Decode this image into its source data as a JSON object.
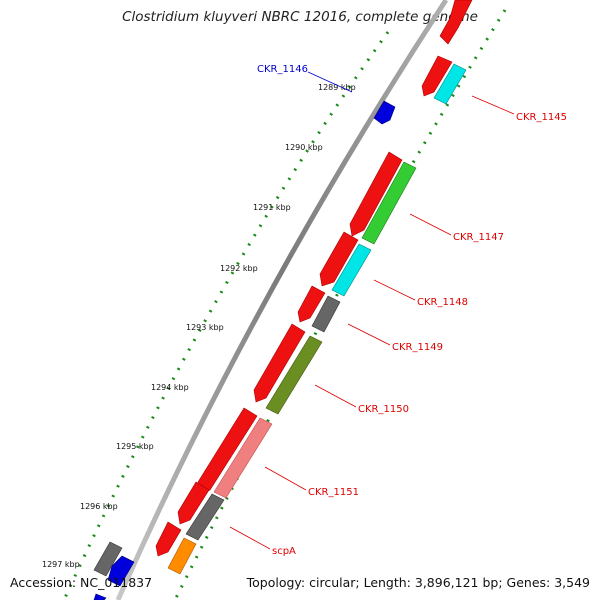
{
  "header": {
    "title": "Clostridium kluyveri NBRC 12016, complete genome"
  },
  "footer": {
    "accession": "Accession: NC_011837",
    "summary": "Topology: circular; Length: 3,896,121 bp; Genes: 3,549"
  },
  "scale_ticks": [
    {
      "label": "1289 kbp",
      "kbp": 1289
    },
    {
      "label": "1290 kbp",
      "kbp": 1290
    },
    {
      "label": "1291 kbp",
      "kbp": 1291
    },
    {
      "label": "1292 kbp",
      "kbp": 1292
    },
    {
      "label": "1293 kbp",
      "kbp": 1293
    },
    {
      "label": "1294 kbp",
      "kbp": 1294
    },
    {
      "label": "1295 kbp",
      "kbp": 1295
    },
    {
      "label": "1296 kbp",
      "kbp": 1296
    },
    {
      "label": "1297 kbp",
      "kbp": 1297
    }
  ],
  "gene_labels": [
    {
      "name": "CKR_1146",
      "color": "#0000cc"
    },
    {
      "name": "CKR_1145",
      "color": "#dd0000"
    },
    {
      "name": "CKR_1147",
      "color": "#dd0000"
    },
    {
      "name": "CKR_1148",
      "color": "#dd0000"
    },
    {
      "name": "CKR_1149",
      "color": "#dd0000"
    },
    {
      "name": "CKR_1150",
      "color": "#dd0000"
    },
    {
      "name": "CKR_1151",
      "color": "#dd0000"
    },
    {
      "name": "scpA",
      "color": "#dd0000"
    }
  ],
  "colors": {
    "forward_cds": "#ee0000",
    "reverse_cds": "#0000dd",
    "cyan_feature": "#00e5e5",
    "green_feature": "#33cc33",
    "olive_feature": "#6b8e23",
    "pink_feature": "#f08080",
    "gray_feature": "#666666",
    "orange_feature": "#ff8c00",
    "backbone": "#8a8a8a",
    "ticks": "#1a8a1a"
  }
}
